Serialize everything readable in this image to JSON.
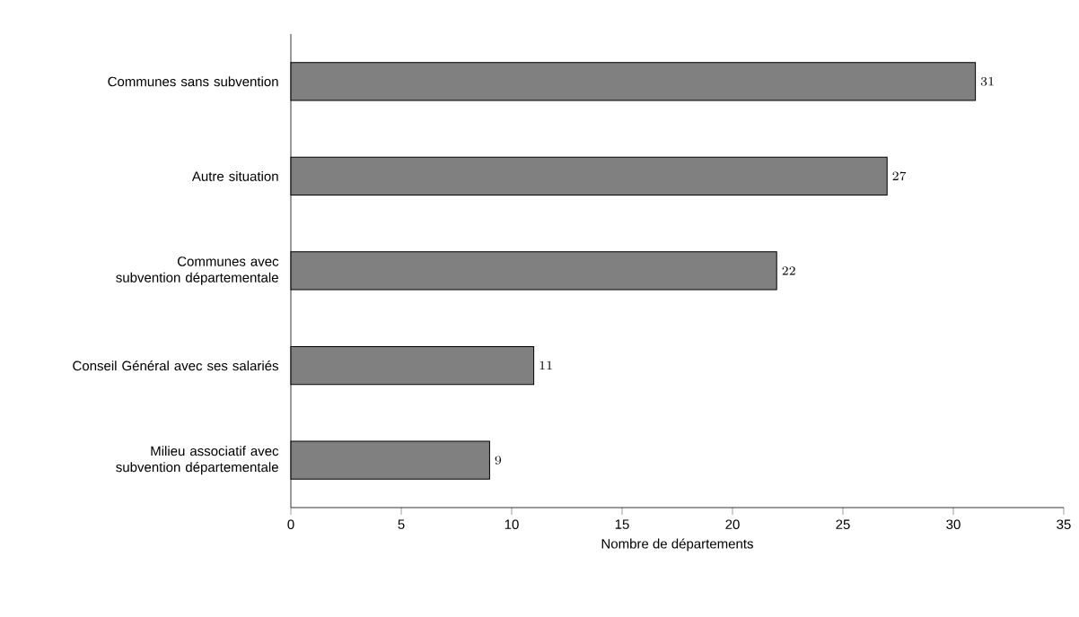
{
  "chart_data": {
    "type": "bar",
    "orientation": "horizontal",
    "categories": [
      "Communes sans subvention",
      "Autre situation",
      "Communes avec subvention départementale",
      "Conseil Général avec ses salariés",
      "Milieu associatif avec subvention départementale"
    ],
    "values": [
      31,
      27,
      22,
      11,
      9
    ],
    "color": "#808080",
    "data_labels": true,
    "xlabel": "Nombre de départements",
    "xlim": [
      0,
      35
    ],
    "xticks": [
      0,
      5,
      10,
      15,
      20,
      25,
      30,
      35
    ]
  }
}
